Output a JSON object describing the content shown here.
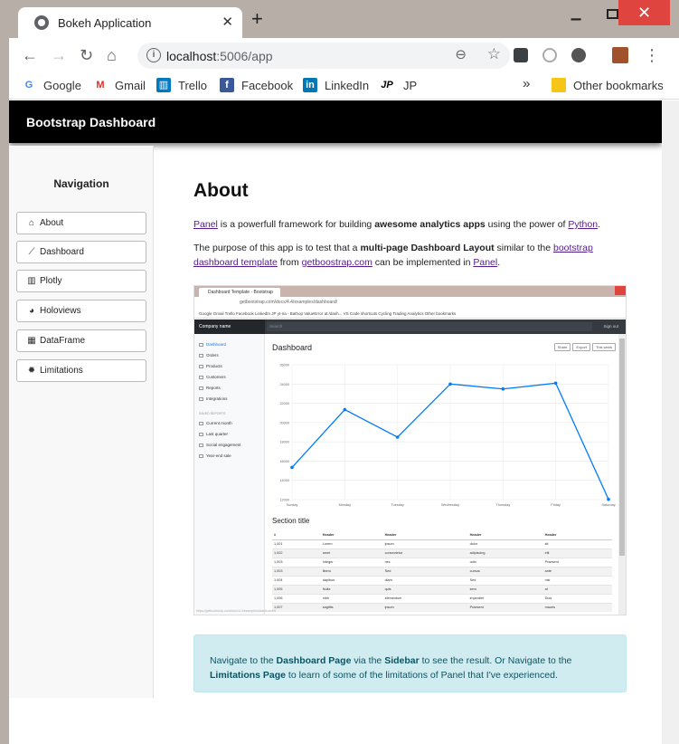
{
  "browser": {
    "tab_title": "Bokeh Application",
    "url_host": "localhost",
    "url_rest": ":5006/app",
    "bookmarks": [
      {
        "label": "Google",
        "icon": "google-icon",
        "color": "#4285f4"
      },
      {
        "label": "Gmail",
        "icon": "gmail-icon",
        "color": "#d93025"
      },
      {
        "label": "Trello",
        "icon": "trello-icon",
        "color": "#0079bf"
      },
      {
        "label": "Facebook",
        "icon": "facebook-icon",
        "color": "#3b5998"
      },
      {
        "label": "LinkedIn",
        "icon": "linkedin-icon",
        "color": "#0077b5"
      },
      {
        "label": "JP",
        "icon": "jp-icon",
        "color": "#000000"
      }
    ],
    "more_bookmarks": "»",
    "other_bookmarks": "Other bookmarks"
  },
  "app": {
    "brand": "Bootstrap Dashboard",
    "sidebar": {
      "title": "Navigation",
      "items": [
        {
          "label": "About",
          "icon": "home-icon"
        },
        {
          "label": "Dashboard",
          "icon": "line-chart-icon"
        },
        {
          "label": "Plotly",
          "icon": "bar-chart-icon"
        },
        {
          "label": "Holoviews",
          "icon": "pie-chart-icon"
        },
        {
          "label": "DataFrame",
          "icon": "table-icon"
        },
        {
          "label": "Limitations",
          "icon": "bug-icon"
        }
      ]
    },
    "main": {
      "heading": "About",
      "p1": {
        "link_panel": "Panel",
        "t1": " is a powerfull framework for building ",
        "bold": "awesome analytics apps",
        "t2": " using the power of ",
        "link_python": "Python",
        "t3": "."
      },
      "p2": {
        "t1": "The purpose of this app is to test that a ",
        "bold": "multi-page Dashboard Layout",
        "t2": " similar to the ",
        "link_bootstrap": "bootstrap dashboard template",
        "t3": " from ",
        "link_getbootstrap": "getboostrap.com",
        "t4": " can be implemented in ",
        "link_panel": "Panel",
        "t5": "."
      },
      "screenshot": {
        "tab_title": "Dashboard Template · Bootstrap",
        "url": "getbootstrap.com/docs/4.4/examples/dashboard/",
        "bookmarks_bar": "Google   Gmail   Trello   Facebook   LinkedIn   JP   yt-na - Bathop   ValueError at /dash...   VS Code shortcuts   Cycling   Trading Analytics                    Other bookmarks",
        "company": "Company name",
        "search": "Search",
        "signout": "Sign out",
        "nav": [
          "Dashboard",
          "Orders",
          "Products",
          "Customers",
          "Reports",
          "Integrations"
        ],
        "saved_header": "SAVED REPORTS",
        "saved": [
          "Current month",
          "Last quarter",
          "Social engagement",
          "Year-end sale"
        ],
        "title": "Dashboard",
        "buttons": [
          "Share",
          "Export",
          "This week"
        ],
        "section_title": "Section title",
        "table_headers": [
          "#",
          "Header",
          "Header",
          "Header",
          "Header"
        ],
        "table_rows": [
          [
            "1,001",
            "Lorem",
            "ipsum",
            "dolor",
            "sit"
          ],
          [
            "1,002",
            "amet",
            "consectetur",
            "adipiscing",
            "elit"
          ],
          [
            "1,003",
            "Integer",
            "nec",
            "odio",
            "Praesent"
          ],
          [
            "1,003",
            "libero",
            "Sed",
            "cursus",
            "ante"
          ],
          [
            "1,004",
            "dapibus",
            "diam",
            "Sed",
            "nisi"
          ],
          [
            "1,005",
            "Nulla",
            "quis",
            "sem",
            "at"
          ],
          [
            "1,006",
            "nibh",
            "elementum",
            "imperdiet",
            "Duis"
          ],
          [
            "1,007",
            "sagittis",
            "ipsum",
            "Praesent",
            "mauris"
          ]
        ],
        "status_url": "https://getbootstrap.com/docs/4.4/examples/dashboard/#"
      },
      "alert": {
        "t1": "Navigate to the ",
        "b1": "Dashboard Page",
        "t2": " via the ",
        "b2": "Sidebar",
        "t3": " to see the result. Or Navigate to the ",
        "b3": "Limitations Page",
        "t4": " to learn of some of the limitations of Panel that I've experienced."
      }
    }
  },
  "chart_data": {
    "type": "line",
    "categories": [
      "Sunday",
      "Monday",
      "Tuesday",
      "Wednesday",
      "Thursday",
      "Friday",
      "Saturday"
    ],
    "series": [
      {
        "values": [
          15339,
          21345,
          18483,
          24003,
          23489,
          24092,
          12034
        ]
      }
    ],
    "ylim": [
      12000,
      26000
    ],
    "yticks": [
      "12000",
      "14000",
      "16000",
      "18000",
      "20000",
      "22000",
      "24000",
      "26000"
    ],
    "line_color": "#007bff",
    "grid": true
  }
}
